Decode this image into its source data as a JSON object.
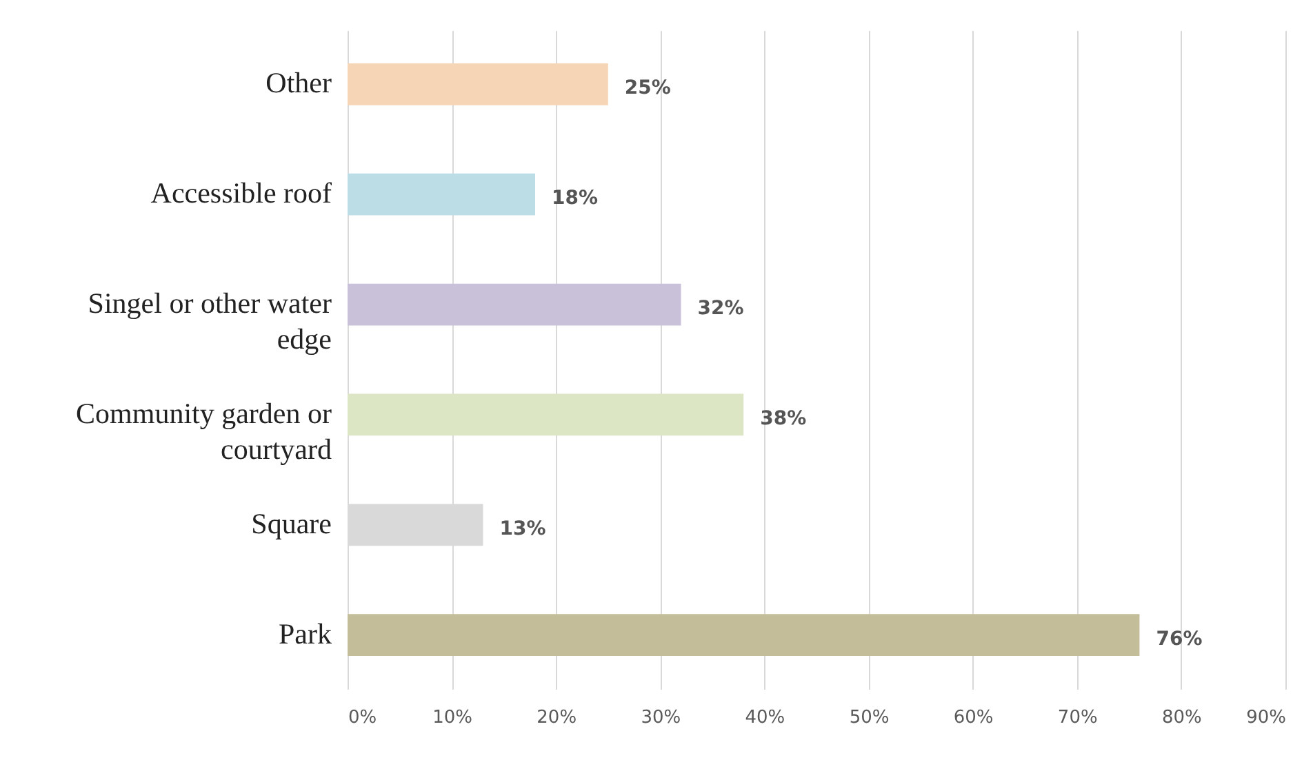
{
  "chart_data": {
    "type": "bar",
    "orientation": "horizontal",
    "categories": [
      "Other",
      "Accessible roof",
      "Singel or other water edge",
      "Community garden or courtyard",
      "Square",
      "Park"
    ],
    "values": [
      25,
      18,
      32,
      38,
      13,
      76
    ],
    "value_labels": [
      "25%",
      "18%",
      "32%",
      "38%",
      "13%",
      "76%"
    ],
    "colors": [
      "#f5d5b5",
      "#bddde6",
      "#c9c1da",
      "#dce6c4",
      "#d9d9d9",
      "#c3bd9a"
    ],
    "xlim": [
      0,
      90
    ],
    "xticks": [
      {
        "value": 0,
        "label": "0%"
      },
      {
        "value": 10,
        "label": "10%"
      },
      {
        "value": 20,
        "label": "20%"
      },
      {
        "value": 30,
        "label": "30%"
      },
      {
        "value": 40,
        "label": "40%"
      },
      {
        "value": 50,
        "label": "50%"
      },
      {
        "value": 60,
        "label": "60%"
      },
      {
        "value": 70,
        "label": "70%"
      },
      {
        "value": 80,
        "label": "80%"
      },
      {
        "value": 90,
        "label": "90%"
      }
    ],
    "grid": "x"
  }
}
